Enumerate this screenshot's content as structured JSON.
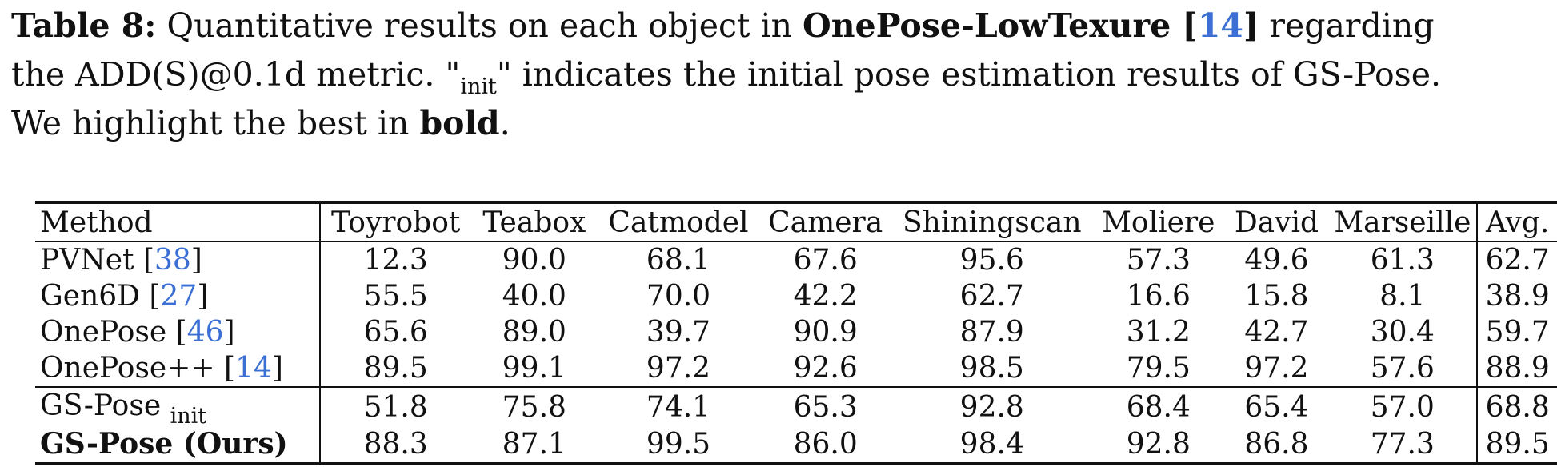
{
  "caption": {
    "label": "Table 8:",
    "text1": " Quantitative results on each object in ",
    "dataset": "OnePose-LowTexure",
    "cite_open": " [",
    "cite_num": "14",
    "cite_close": "]",
    "text2": " regarding",
    "line2_a": "the ADD(S)@0.1d metric. \"",
    "line2_sub": "init",
    "line2_b": "\" indicates the initial pose estimation results of GS-Pose.",
    "line3_a": "We highlight the best in ",
    "line3_bold": "bold",
    "line3_b": "."
  },
  "table": {
    "headers": [
      "Method",
      "Toyrobot",
      "Teabox",
      "Catmodel",
      "Camera",
      "Shiningscan",
      "Moliere",
      "David",
      "Marseille",
      "Avg."
    ],
    "rows": [
      {
        "method": "PVNet ",
        "cite": "38",
        "values": [
          "12.3",
          "90.0",
          "68.1",
          "67.6",
          "95.6",
          "57.3",
          "49.6",
          "61.3",
          "62.7"
        ],
        "bold": [
          false,
          false,
          false,
          false,
          false,
          false,
          false,
          false,
          false
        ]
      },
      {
        "method": "Gen6D ",
        "cite": "27",
        "values": [
          "55.5",
          "40.0",
          "70.0",
          "42.2",
          "62.7",
          "16.6",
          "15.8",
          "8.1",
          "38.9"
        ],
        "bold": [
          false,
          false,
          false,
          false,
          false,
          false,
          false,
          false,
          false
        ]
      },
      {
        "method": "OnePose ",
        "cite": "46",
        "values": [
          "65.6",
          "89.0",
          "39.7",
          "90.9",
          "87.9",
          "31.2",
          "42.7",
          "30.4",
          "59.7"
        ],
        "bold": [
          false,
          false,
          false,
          false,
          false,
          false,
          false,
          false,
          false
        ]
      },
      {
        "method": "OnePose++ ",
        "cite": "14",
        "values": [
          "89.5",
          "99.1",
          "97.2",
          "92.6",
          "98.5",
          "79.5",
          "97.2",
          "57.6",
          "88.9"
        ],
        "bold": [
          true,
          true,
          false,
          true,
          true,
          false,
          true,
          false,
          false
        ]
      },
      {
        "method": "GS-Pose ",
        "sub": "init",
        "values": [
          "51.8",
          "75.8",
          "74.1",
          "65.3",
          "92.8",
          "68.4",
          "65.4",
          "57.0",
          "68.8"
        ],
        "bold": [
          false,
          false,
          false,
          false,
          false,
          false,
          false,
          false,
          false
        ]
      },
      {
        "method": "GS-Pose (Ours)",
        "method_bold": true,
        "values": [
          "88.3",
          "87.1",
          "99.5",
          "86.0",
          "98.4",
          "92.8",
          "86.8",
          "77.3",
          "89.5"
        ],
        "bold": [
          false,
          false,
          true,
          false,
          false,
          true,
          false,
          true,
          true
        ]
      }
    ]
  }
}
